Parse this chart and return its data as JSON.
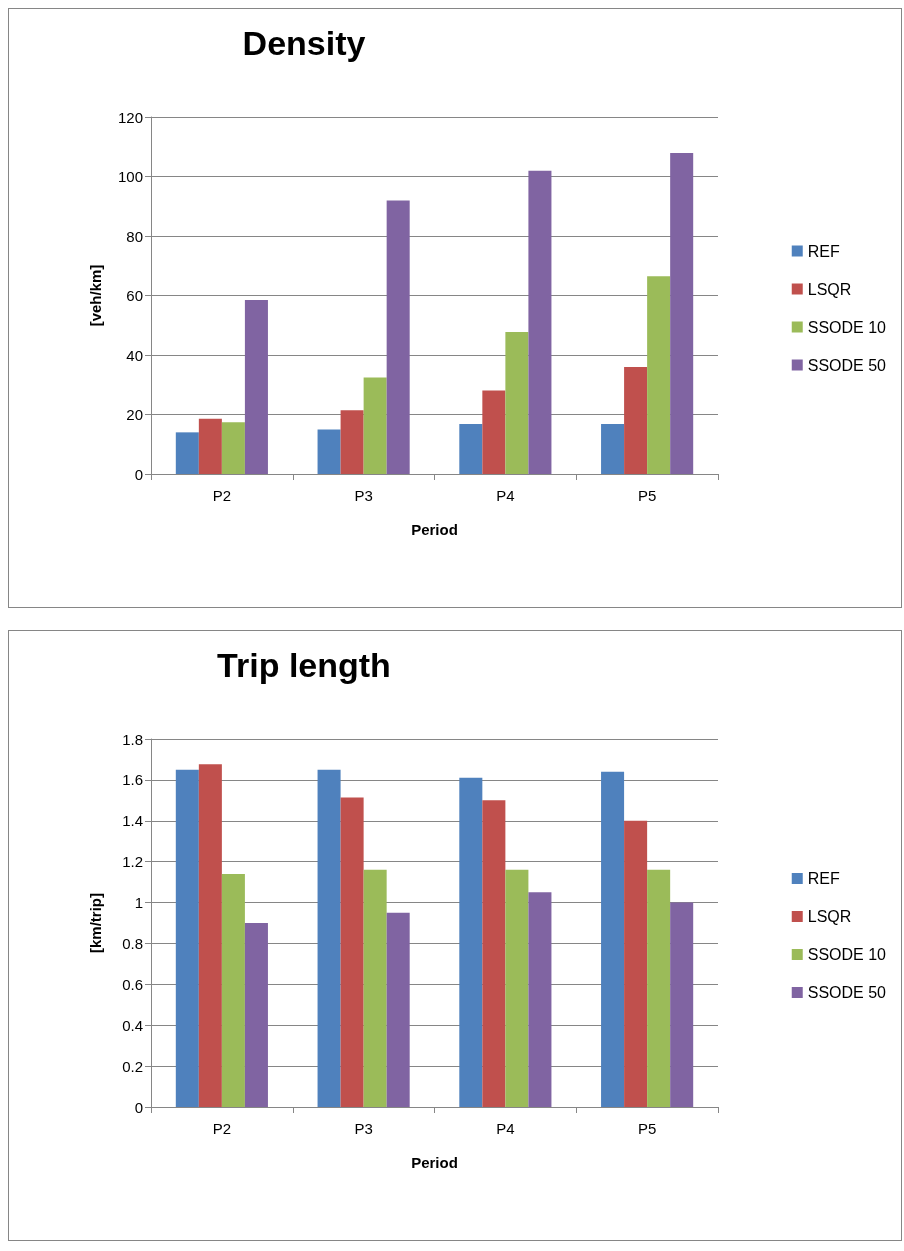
{
  "chart_data": [
    {
      "type": "bar",
      "title": "Density",
      "xlabel": "Period",
      "ylabel": "[veh/km]",
      "categories": [
        "P2",
        "P3",
        "P4",
        "P5"
      ],
      "ylim": [
        0,
        120
      ],
      "yticks": [
        0,
        20,
        40,
        60,
        80,
        100,
        120
      ],
      "grid": "y",
      "legend": "right",
      "series": [
        {
          "name": "REF",
          "color": "#4f81bd",
          "values": [
            14,
            15,
            16.8,
            16.8
          ]
        },
        {
          "name": "LSQR",
          "color": "#c0504d",
          "values": [
            18.6,
            21.4,
            28.1,
            36
          ]
        },
        {
          "name": "SSODE 10",
          "color": "#9bbb59",
          "values": [
            17.4,
            32.4,
            47.7,
            66.5
          ]
        },
        {
          "name": "SSODE 50",
          "color": "#8064a2",
          "values": [
            58.5,
            91.9,
            101.9,
            107.9
          ]
        }
      ]
    },
    {
      "type": "bar",
      "title": "Trip length",
      "xlabel": "Period",
      "ylabel": "[km/trip]",
      "categories": [
        "P2",
        "P3",
        "P4",
        "P5"
      ],
      "ylim": [
        0,
        1.8
      ],
      "yticks": [
        0,
        0.2,
        0.4,
        0.6,
        0.8,
        1,
        1.2,
        1.4,
        1.6,
        1.8
      ],
      "grid": "y",
      "legend": "right",
      "series": [
        {
          "name": "REF",
          "color": "#4f81bd",
          "values": [
            1.65,
            1.65,
            1.61,
            1.64
          ]
        },
        {
          "name": "LSQR",
          "color": "#c0504d",
          "values": [
            1.676,
            1.514,
            1.5,
            1.4
          ]
        },
        {
          "name": "SSODE 10",
          "color": "#9bbb59",
          "values": [
            1.14,
            1.16,
            1.16,
            1.16
          ]
        },
        {
          "name": "SSODE 50",
          "color": "#8064a2",
          "values": [
            0.9,
            0.95,
            1.05,
            1
          ]
        }
      ]
    }
  ]
}
